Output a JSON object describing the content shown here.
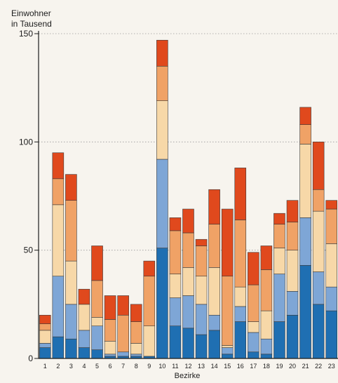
{
  "chart_data": {
    "type": "bar",
    "stacked": true,
    "title": "",
    "ylabel_line1": "Einwohner",
    "ylabel_line2": "in Tausend",
    "xlabel": "Bezirke",
    "ylim": [
      0,
      150
    ],
    "yticks": [
      0,
      50,
      100,
      150
    ],
    "grid": "horizontal dotted",
    "categories": [
      "1",
      "2",
      "3",
      "4",
      "5",
      "6",
      "7",
      "8",
      "9",
      "10",
      "11",
      "12",
      "13",
      "14",
      "15",
      "16",
      "17",
      "18",
      "19",
      "20",
      "21",
      "22",
      "23"
    ],
    "colors": [
      "#1f6fb2",
      "#7ea6d6",
      "#f7d8a8",
      "#f0a266",
      "#e0491d"
    ],
    "segments": [
      [
        5,
        2,
        6,
        3,
        4
      ],
      [
        10,
        28,
        33,
        12,
        12
      ],
      [
        9,
        16,
        20,
        28,
        12
      ],
      [
        5,
        8,
        12,
        0,
        7
      ],
      [
        4,
        11,
        4,
        17,
        16
      ],
      [
        1,
        1,
        6,
        10,
        11
      ],
      [
        1,
        2,
        0,
        17,
        9
      ],
      [
        1,
        1,
        5,
        10,
        8
      ],
      [
        1,
        0,
        14,
        23,
        7
      ],
      [
        51,
        41,
        27,
        16,
        12
      ],
      [
        15,
        13,
        11,
        20,
        6
      ],
      [
        14,
        15,
        13,
        16,
        11
      ],
      [
        11,
        14,
        13,
        14,
        3
      ],
      [
        13,
        7,
        22,
        20,
        16
      ],
      [
        2,
        3,
        1,
        32,
        31
      ],
      [
        17,
        7,
        9,
        31,
        24
      ],
      [
        3,
        9,
        5,
        17,
        15
      ],
      [
        2,
        7,
        13,
        19,
        11
      ],
      [
        17,
        22,
        12,
        11,
        5
      ],
      [
        20,
        11,
        19,
        13,
        10
      ],
      [
        43,
        22,
        34,
        9,
        8
      ],
      [
        25,
        15,
        28,
        10,
        22
      ],
      [
        22,
        11,
        20,
        16,
        4
      ]
    ]
  }
}
